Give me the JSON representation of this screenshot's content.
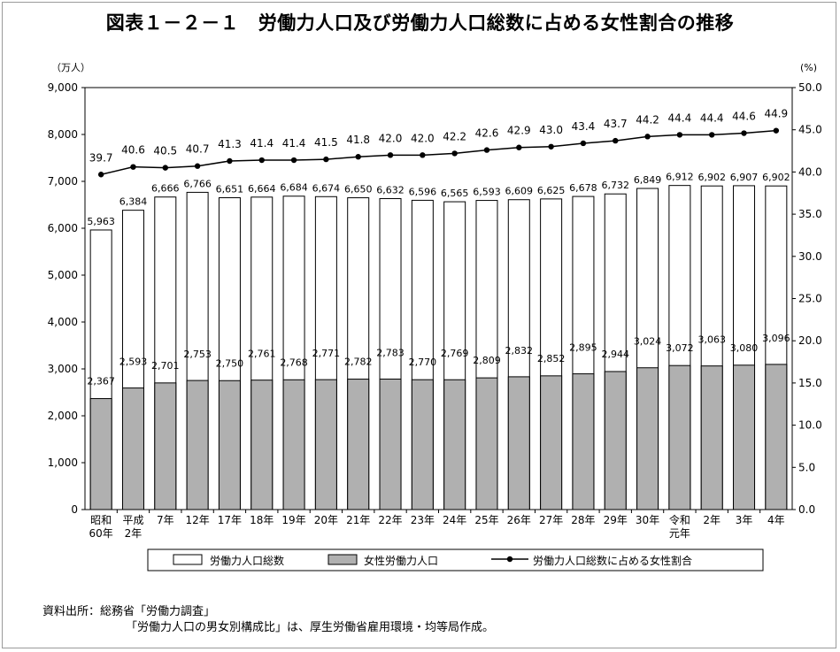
{
  "chart_data": {
    "type": "bar+line",
    "title": "図表１－２－１　労働力人口及び労働力人口総数に占める女性割合の推移",
    "y_left_unit": "（万人）",
    "y_right_unit": "(%)",
    "y_left_range": [
      0,
      9000
    ],
    "y_left_ticks": [
      "0",
      "1,000",
      "2,000",
      "3,000",
      "4,000",
      "5,000",
      "6,000",
      "7,000",
      "8,000",
      "9,000"
    ],
    "y_right_range": [
      0,
      50
    ],
    "y_right_ticks": [
      "0.0",
      "5.0",
      "10.0",
      "15.0",
      "20.0",
      "25.0",
      "30.0",
      "35.0",
      "40.0",
      "45.0",
      "50.0"
    ],
    "categories": [
      [
        "昭和",
        "60年"
      ],
      [
        "平成",
        "2年"
      ],
      [
        "7年"
      ],
      [
        "12年"
      ],
      [
        "17年"
      ],
      [
        "18年"
      ],
      [
        "19年"
      ],
      [
        "20年"
      ],
      [
        "21年"
      ],
      [
        "22年"
      ],
      [
        "23年"
      ],
      [
        "24年"
      ],
      [
        "25年"
      ],
      [
        "26年"
      ],
      [
        "27年"
      ],
      [
        "28年"
      ],
      [
        "29年"
      ],
      [
        "30年"
      ],
      [
        "令和",
        "元年"
      ],
      [
        "2年"
      ],
      [
        "3年"
      ],
      [
        "4年"
      ]
    ],
    "series": [
      {
        "name": "労働力人口総数",
        "type": "bar",
        "color": "#ffffff",
        "values": [
          5963,
          6384,
          6666,
          6766,
          6651,
          6664,
          6684,
          6674,
          6650,
          6632,
          6596,
          6565,
          6593,
          6609,
          6625,
          6678,
          6732,
          6849,
          6912,
          6902,
          6907,
          6902
        ],
        "labels": [
          "5,963",
          "6,384",
          "6,666",
          "6,766",
          "6,651",
          "6,664",
          "6,684",
          "6,674",
          "6,650",
          "6,632",
          "6,596",
          "6,565",
          "6,593",
          "6,609",
          "6,625",
          "6,678",
          "6,732",
          "6,849",
          "6,912",
          "6,902",
          "6,907",
          "6,902"
        ]
      },
      {
        "name": "女性労働力人口",
        "type": "bar",
        "color": "#b0b0b0",
        "values": [
          2367,
          2593,
          2701,
          2753,
          2750,
          2761,
          2768,
          2771,
          2782,
          2783,
          2770,
          2769,
          2809,
          2832,
          2852,
          2895,
          2944,
          3024,
          3072,
          3063,
          3080,
          3096
        ],
        "labels": [
          "2,367",
          "2,593",
          "2,701",
          "2,753",
          "2,750",
          "2,761",
          "2,768",
          "2,771",
          "2,782",
          "2,783",
          "2,770",
          "2,769",
          "2,809",
          "2,832",
          "2,852",
          "2,895",
          "2,944",
          "3,024",
          "3,072",
          "3,063",
          "3,080",
          "3,096"
        ]
      },
      {
        "name": "労働力人口総数に占める女性割合",
        "type": "line",
        "axis": "right",
        "color": "#000000",
        "values": [
          39.7,
          40.6,
          40.5,
          40.7,
          41.3,
          41.4,
          41.4,
          41.5,
          41.8,
          42.0,
          42.0,
          42.2,
          42.6,
          42.9,
          43.0,
          43.4,
          43.7,
          44.2,
          44.4,
          44.4,
          44.6,
          44.9
        ],
        "labels": [
          "39.7",
          "40.6",
          "40.5",
          "40.7",
          "41.3",
          "41.4",
          "41.4",
          "41.5",
          "41.8",
          "42.0",
          "42.0",
          "42.2",
          "42.6",
          "42.9",
          "43.0",
          "43.4",
          "43.7",
          "44.2",
          "44.4",
          "44.4",
          "44.6",
          "44.9"
        ]
      }
    ]
  },
  "source": {
    "line1": "資料出所：総務省「労働力調査」",
    "line2": "「労働力人口の男女別構成比」は、厚生労働省雇用環境・均等局作成。"
  }
}
